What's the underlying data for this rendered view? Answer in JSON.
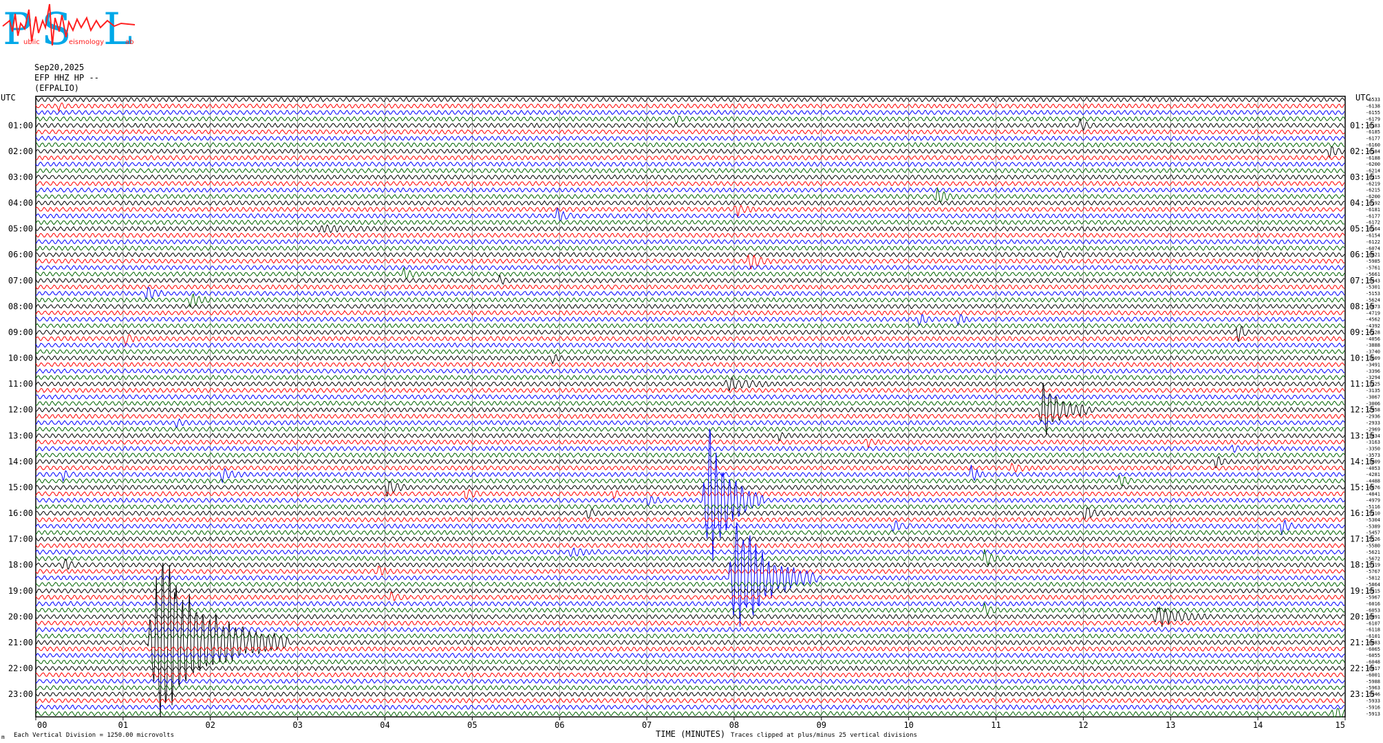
{
  "header": {
    "logo_letters": [
      "P",
      "S",
      "L"
    ],
    "logo_small_text": [
      "ublic",
      "eismology",
      "ab"
    ],
    "date": "Sep20,2025",
    "channel": "EFP HHZ HP --",
    "location": "(EFPALIO)"
  },
  "footer": {
    "scale_note": "Each Vertical Division = 1250.00 microvolts",
    "axis_title": "TIME (MINUTES)",
    "clip_note": "Traces clipped at plus/minus 25 vertical divisions",
    "corner_mark": "m"
  },
  "colors": {
    "trace_cycle": [
      "#000000",
      "#ff0000",
      "#0000ff",
      "#006400"
    ],
    "grid": "#808080",
    "logo_cyan": "#00a8e8",
    "logo_red": "#ff2020"
  },
  "chart_data": {
    "type": "line",
    "title": "",
    "xlabel": "TIME (MINUTES)",
    "ylabel": "",
    "xlim": [
      0,
      15
    ],
    "x_ticks": [
      "00",
      "01",
      "02",
      "03",
      "04",
      "05",
      "06",
      "07",
      "08",
      "09",
      "10",
      "11",
      "12",
      "13",
      "14",
      "15"
    ],
    "left_axis_label": "UTC",
    "right_axis_label": "UTC",
    "rows_per_hour": 4,
    "row_count": 96,
    "left_hour_labels": [
      "01:00",
      "02:00",
      "03:00",
      "04:00",
      "05:00",
      "06:00",
      "07:00",
      "08:00",
      "09:00",
      "10:00",
      "11:00",
      "12:00",
      "13:00",
      "14:00",
      "15:00",
      "16:00",
      "17:00",
      "18:00",
      "19:00",
      "20:00",
      "21:00",
      "22:00",
      "23:00"
    ],
    "right_hour_labels": [
      "01:15",
      "02:15",
      "03:15",
      "04:15",
      "05:15",
      "06:15",
      "07:15",
      "08:15",
      "09:15",
      "10:15",
      "11:15",
      "12:15",
      "13:15",
      "14:15",
      "15:15",
      "16:15",
      "17:15",
      "18:15",
      "19:15",
      "20:15",
      "21:15",
      "22:15",
      "23:15"
    ],
    "row_offsets": [
      -6533,
      -6138,
      -6155,
      -6179,
      -6183,
      -6185,
      -6177,
      -6160,
      -6184,
      -6188,
      -6200,
      -6214,
      -6215,
      -6219,
      -6215,
      -6200,
      -6192,
      -6181,
      -6177,
      -6172,
      -6164,
      -6154,
      -6122,
      -6074,
      -6021,
      -5985,
      -5761,
      -5661,
      -5443,
      -5301,
      -5153,
      -5624,
      -4873,
      -4719,
      -4562,
      -4392,
      -4228,
      -4056,
      -3888,
      -3740,
      -3609,
      -3491,
      -3396,
      -3294,
      -3225,
      -3135,
      -3067,
      -3006,
      -2958,
      -2936,
      -2933,
      -2969,
      -3034,
      -3163,
      -3350,
      -3573,
      -3809,
      -4053,
      -4281,
      -4488,
      -4676,
      -4841,
      -4979,
      -5116,
      -5210,
      -5304,
      -5389,
      -5457,
      -5526,
      -5580,
      -5621,
      -5672,
      -5719,
      -5767,
      -5812,
      -5864,
      -5915,
      -5967,
      -6016,
      -6053,
      -6091,
      -6107,
      -6118,
      -6101,
      -6083,
      -6065,
      -6055,
      -6048,
      -6017,
      -6001,
      -5988,
      -5963,
      -5946,
      -5933,
      -5916,
      -5913
    ],
    "events": [
      {
        "row": 1,
        "minute": 0.25,
        "amp": 4,
        "dur": 0.15
      },
      {
        "row": 3,
        "minute": 7.3,
        "amp": 5,
        "dur": 0.2
      },
      {
        "row": 4,
        "minute": 11.95,
        "amp": 7,
        "dur": 0.2
      },
      {
        "row": 8,
        "minute": 14.8,
        "amp": 6,
        "dur": 0.3
      },
      {
        "row": 15,
        "minute": 10.3,
        "amp": 9,
        "dur": 0.3
      },
      {
        "row": 17,
        "minute": 8.0,
        "amp": 9,
        "dur": 0.25
      },
      {
        "row": 18,
        "minute": 5.95,
        "amp": 8,
        "dur": 0.25
      },
      {
        "row": 20,
        "minute": 3.2,
        "amp": 3,
        "dur": 1.0
      },
      {
        "row": 24,
        "minute": 11.7,
        "amp": 4,
        "dur": 0.15
      },
      {
        "row": 25,
        "minute": 8.15,
        "amp": 11,
        "dur": 0.3
      },
      {
        "row": 27,
        "minute": 4.2,
        "amp": 6,
        "dur": 0.25
      },
      {
        "row": 28,
        "minute": 5.3,
        "amp": 4,
        "dur": 0.2
      },
      {
        "row": 30,
        "minute": 1.25,
        "amp": 9,
        "dur": 0.25
      },
      {
        "row": 31,
        "minute": 1.75,
        "amp": 10,
        "dur": 0.25
      },
      {
        "row": 34,
        "minute": 10.1,
        "amp": 8,
        "dur": 0.2
      },
      {
        "row": 34,
        "minute": 10.55,
        "amp": 6,
        "dur": 0.2
      },
      {
        "row": 36,
        "minute": 13.75,
        "amp": 16,
        "dur": 0.15
      },
      {
        "row": 37,
        "minute": 1.0,
        "amp": 8,
        "dur": 0.2
      },
      {
        "row": 40,
        "minute": 5.9,
        "amp": 5,
        "dur": 0.2
      },
      {
        "row": 44,
        "minute": 7.9,
        "amp": 7,
        "dur": 0.6
      },
      {
        "row": 48,
        "minute": 11.5,
        "amp": 40,
        "dur": 0.5
      },
      {
        "row": 48,
        "minute": 11.95,
        "amp": 9,
        "dur": 0.2
      },
      {
        "row": 50,
        "minute": 1.6,
        "amp": 5,
        "dur": 0.15
      },
      {
        "row": 52,
        "minute": 8.5,
        "amp": 5,
        "dur": 0.15
      },
      {
        "row": 53,
        "minute": 9.5,
        "amp": 6,
        "dur": 0.2
      },
      {
        "row": 54,
        "minute": 13.7,
        "amp": 5,
        "dur": 0.15
      },
      {
        "row": 56,
        "minute": 13.5,
        "amp": 8,
        "dur": 0.2
      },
      {
        "row": 57,
        "minute": 11.15,
        "amp": 5,
        "dur": 0.3
      },
      {
        "row": 58,
        "minute": 0.3,
        "amp": 6,
        "dur": 0.15
      },
      {
        "row": 58,
        "minute": 2.1,
        "amp": 8,
        "dur": 0.3
      },
      {
        "row": 58,
        "minute": 10.7,
        "amp": 10,
        "dur": 0.2
      },
      {
        "row": 59,
        "minute": 12.4,
        "amp": 8,
        "dur": 0.2
      },
      {
        "row": 60,
        "minute": 4.0,
        "amp": 10,
        "dur": 0.3
      },
      {
        "row": 61,
        "minute": 4.9,
        "amp": 7,
        "dur": 0.25
      },
      {
        "row": 61,
        "minute": 6.6,
        "amp": 5,
        "dur": 0.15
      },
      {
        "row": 62,
        "minute": 7.0,
        "amp": 7,
        "dur": 0.2
      },
      {
        "row": 62,
        "minute": 7.65,
        "amp": 90,
        "dur": 0.7
      },
      {
        "row": 64,
        "minute": 6.3,
        "amp": 7,
        "dur": 0.2
      },
      {
        "row": 64,
        "minute": 12.0,
        "amp": 10,
        "dur": 0.25
      },
      {
        "row": 66,
        "minute": 9.8,
        "amp": 7,
        "dur": 0.25
      },
      {
        "row": 66,
        "minute": 14.25,
        "amp": 10,
        "dur": 0.2
      },
      {
        "row": 70,
        "minute": 6.1,
        "amp": 5,
        "dur": 0.4
      },
      {
        "row": 71,
        "minute": 10.85,
        "amp": 9,
        "dur": 0.25
      },
      {
        "row": 72,
        "minute": 0.3,
        "amp": 7,
        "dur": 0.25
      },
      {
        "row": 73,
        "minute": 3.9,
        "amp": 6,
        "dur": 0.2
      },
      {
        "row": 74,
        "minute": 7.95,
        "amp": 80,
        "dur": 1.0
      },
      {
        "row": 77,
        "minute": 4.05,
        "amp": 6,
        "dur": 0.2
      },
      {
        "row": 79,
        "minute": 10.85,
        "amp": 6,
        "dur": 0.2
      },
      {
        "row": 80,
        "minute": 12.8,
        "amp": 12,
        "dur": 0.7
      },
      {
        "row": 84,
        "minute": 1.3,
        "amp": 110,
        "dur": 1.6
      },
      {
        "row": 95,
        "minute": 14.85,
        "amp": 10,
        "dur": 0.3
      }
    ],
    "grid": true
  }
}
